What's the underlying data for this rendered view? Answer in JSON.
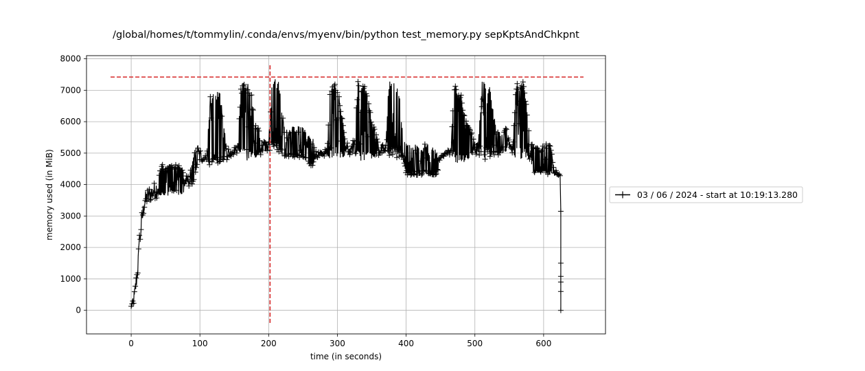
{
  "chart_data": {
    "type": "line",
    "title": "/global/homes/t/tommylin/.conda/envs/myenv/bin/python test_memory.py sepKptsAndChkpnt",
    "xlabel": "time (in seconds)",
    "ylabel": "memory used (in MiB)",
    "xlim": [
      -65,
      690
    ],
    "ylim": [
      -750,
      8100
    ],
    "x_ticks": [
      0,
      100,
      200,
      300,
      400,
      500,
      600
    ],
    "y_ticks": [
      0,
      1000,
      2000,
      3000,
      4000,
      5000,
      6000,
      7000,
      8000
    ],
    "grid": true,
    "legend_position": "outside-right",
    "series": [
      {
        "name": "03 / 06 / 2024 - start at 10:19:13.280",
        "color": "#000000",
        "marker": "+",
        "envelope": {
          "x": [
            0,
            3,
            6,
            9,
            12,
            15,
            18,
            21,
            25,
            30,
            35,
            40,
            45,
            50,
            55,
            60,
            65,
            70,
            75,
            80,
            85,
            90,
            95,
            100,
            105,
            110,
            115,
            120,
            125,
            130,
            135,
            140,
            145,
            150,
            155,
            160,
            165,
            170,
            175,
            180,
            185,
            190,
            195,
            200,
            205,
            210,
            215,
            220,
            225,
            230,
            235,
            240,
            245,
            250,
            255,
            260,
            265,
            270,
            275,
            280,
            285,
            290,
            295,
            300,
            305,
            310,
            315,
            320,
            325,
            330,
            335,
            340,
            345,
            350,
            355,
            360,
            365,
            370,
            375,
            380,
            385,
            390,
            395,
            400,
            405,
            410,
            415,
            420,
            425,
            430,
            435,
            440,
            445,
            450,
            455,
            460,
            465,
            470,
            475,
            480,
            485,
            490,
            495,
            500,
            505,
            510,
            515,
            520,
            525,
            530,
            535,
            540,
            545,
            550,
            555,
            560,
            565,
            570,
            575,
            580,
            585,
            590,
            595,
            600,
            605,
            610,
            615,
            620,
            624
          ],
          "low": [
            0,
            100,
            400,
            900,
            1700,
            2500,
            3000,
            3300,
            3400,
            3500,
            3550,
            3600,
            3600,
            3650,
            3650,
            3700,
            3700,
            3650,
            3600,
            3900,
            3950,
            4000,
            4500,
            4700,
            4750,
            4800,
            4550,
            4550,
            4550,
            4600,
            4700,
            4800,
            4900,
            4950,
            5000,
            4800,
            4750,
            4750,
            4800,
            4850,
            4900,
            4950,
            5000,
            5050,
            5050,
            5100,
            5000,
            4900,
            4850,
            4850,
            4850,
            4850,
            4850,
            4850,
            4850,
            4600,
            4600,
            4850,
            4900,
            4900,
            4900,
            4800,
            4750,
            4750,
            4800,
            4850,
            4850,
            5000,
            5000,
            4800,
            4750,
            4750,
            4750,
            4800,
            4850,
            4900,
            4900,
            4950,
            4900,
            4900,
            4850,
            4850,
            4850,
            4300,
            4300,
            4300,
            4300,
            4300,
            4300,
            4300,
            4300,
            4300,
            4300,
            4800,
            4900,
            4900,
            4850,
            4700,
            4650,
            4650,
            4700,
            4800,
            4900,
            5000,
            4900,
            4800,
            4800,
            4800,
            4800,
            4900,
            4950,
            5000,
            5050,
            5100,
            4900,
            4800,
            4800,
            4800,
            4800,
            4800,
            4300,
            4300,
            4300,
            4300,
            4300,
            4300,
            4300,
            4300,
            4280
          ],
          "high": [
            200,
            450,
            900,
            1500,
            2400,
            3100,
            3500,
            3800,
            3900,
            4000,
            4100,
            4300,
            4650,
            4500,
            4650,
            4600,
            4650,
            4650,
            4450,
            4300,
            4300,
            4900,
            5300,
            5200,
            4850,
            5000,
            6800,
            7100,
            7000,
            6900,
            5800,
            5200,
            5150,
            5200,
            5250,
            7200,
            7350,
            7300,
            6900,
            5900,
            5800,
            5500,
            5400,
            5400,
            7300,
            7400,
            7350,
            6200,
            5800,
            5700,
            5900,
            5800,
            5900,
            5900,
            5600,
            5600,
            5500,
            5000,
            5100,
            5100,
            5200,
            7300,
            7250,
            7200,
            6500,
            5600,
            5300,
            5200,
            5600,
            7300,
            7300,
            7250,
            6800,
            6000,
            5700,
            5400,
            5300,
            5200,
            7350,
            7350,
            7300,
            6900,
            5600,
            5300,
            5300,
            5300,
            5300,
            5200,
            5300,
            5300,
            5300,
            5200,
            5000,
            4900,
            5000,
            5100,
            5150,
            7150,
            7100,
            7000,
            6200,
            5900,
            5700,
            5400,
            5300,
            7300,
            7400,
            7350,
            6600,
            5900,
            5700,
            5600,
            5900,
            5400,
            5200,
            7300,
            7350,
            7300,
            6600,
            5300,
            5300,
            5200,
            5100,
            5300,
            5300,
            5300,
            4600,
            4400,
            4300
          ]
        },
        "tail": {
          "x": [
            624,
            625,
            625,
            625,
            625,
            625,
            625
          ],
          "y": [
            4280,
            3150,
            1500,
            1080,
            900,
            600,
            0
          ]
        }
      }
    ],
    "reference_lines": [
      {
        "orientation": "horizontal",
        "y": 7420,
        "x_from": -30,
        "x_to": 658,
        "color": "#d62728",
        "style": "dashed"
      },
      {
        "orientation": "vertical",
        "x": 202,
        "y_from": -400,
        "y_to": 7800,
        "color": "#d62728",
        "style": "dashed"
      }
    ]
  }
}
